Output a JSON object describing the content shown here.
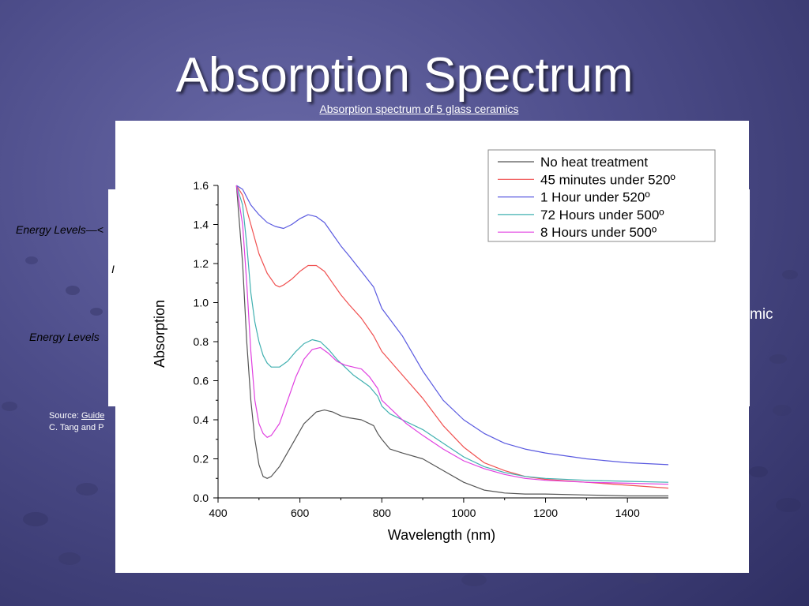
{
  "slide": {
    "title": "Absorption Spectrum",
    "subtitle_link": "Absorption spectrum of 5 glass ceramics",
    "side_label_1": "Energy Levels",
    "side_label_2": "Energy Levels",
    "side_fragment": "I",
    "source_prefix": "Source: ",
    "source_link": "Guide",
    "source_line2": "C. Tang and P",
    "right_fragment": "mic"
  },
  "colors": {
    "background": "#4d4d8a",
    "series": [
      "#555555",
      "#f05050",
      "#5a5ae0",
      "#40b0b0",
      "#e040e0"
    ]
  },
  "chart_data": {
    "type": "line",
    "xlabel": "Wavelength (nm)",
    "ylabel": "Absorption",
    "xlim": [
      400,
      1500
    ],
    "ylim": [
      0.0,
      1.6
    ],
    "xticks": [
      "400",
      "600",
      "800",
      "1000",
      "1200",
      "1400"
    ],
    "yticks": [
      "0.0",
      "0.2",
      "0.4",
      "0.6",
      "0.8",
      "1.0",
      "1.2",
      "1.4",
      "1.6"
    ],
    "legend_position": "top-right",
    "series": [
      {
        "name": "No heat treatment",
        "x": [
          445,
          460,
          470,
          480,
          490,
          500,
          510,
          520,
          530,
          550,
          580,
          610,
          640,
          660,
          680,
          700,
          720,
          750,
          770,
          780,
          790,
          800,
          820,
          850,
          900,
          950,
          1000,
          1050,
          1100,
          1150,
          1200,
          1300,
          1400,
          1500
        ],
        "y": [
          1.6,
          1.2,
          0.8,
          0.5,
          0.3,
          0.17,
          0.11,
          0.1,
          0.11,
          0.16,
          0.27,
          0.38,
          0.44,
          0.45,
          0.44,
          0.42,
          0.41,
          0.4,
          0.38,
          0.37,
          0.33,
          0.3,
          0.25,
          0.23,
          0.2,
          0.14,
          0.08,
          0.04,
          0.025,
          0.02,
          0.02,
          0.015,
          0.01,
          0.01
        ]
      },
      {
        "name": "45 minutes under 520º",
        "x": [
          445,
          460,
          480,
          500,
          520,
          540,
          550,
          560,
          580,
          600,
          620,
          640,
          660,
          680,
          700,
          720,
          750,
          780,
          800,
          850,
          900,
          950,
          1000,
          1050,
          1100,
          1150,
          1200,
          1300,
          1400,
          1500
        ],
        "y": [
          1.6,
          1.55,
          1.4,
          1.25,
          1.15,
          1.09,
          1.08,
          1.09,
          1.12,
          1.16,
          1.19,
          1.19,
          1.16,
          1.1,
          1.04,
          0.99,
          0.92,
          0.83,
          0.75,
          0.63,
          0.51,
          0.37,
          0.26,
          0.18,
          0.14,
          0.11,
          0.095,
          0.08,
          0.065,
          0.05
        ]
      },
      {
        "name": "1 Hour under 520º",
        "x": [
          445,
          460,
          480,
          500,
          520,
          540,
          560,
          580,
          600,
          620,
          640,
          660,
          680,
          700,
          720,
          750,
          780,
          800,
          850,
          900,
          950,
          1000,
          1050,
          1100,
          1150,
          1200,
          1300,
          1400,
          1500
        ],
        "y": [
          1.6,
          1.58,
          1.5,
          1.45,
          1.41,
          1.39,
          1.38,
          1.4,
          1.43,
          1.45,
          1.44,
          1.41,
          1.35,
          1.29,
          1.24,
          1.16,
          1.08,
          0.97,
          0.83,
          0.65,
          0.5,
          0.4,
          0.33,
          0.28,
          0.25,
          0.23,
          0.2,
          0.18,
          0.17
        ]
      },
      {
        "name": "72 Hours under 500º",
        "x": [
          445,
          460,
          470,
          480,
          490,
          500,
          510,
          520,
          530,
          550,
          570,
          590,
          610,
          630,
          650,
          670,
          690,
          710,
          730,
          750,
          770,
          790,
          800,
          820,
          850,
          900,
          950,
          1000,
          1050,
          1100,
          1150,
          1200,
          1300,
          1400,
          1500
        ],
        "y": [
          1.6,
          1.5,
          1.3,
          1.05,
          0.9,
          0.8,
          0.73,
          0.69,
          0.67,
          0.67,
          0.7,
          0.75,
          0.79,
          0.81,
          0.8,
          0.76,
          0.71,
          0.67,
          0.63,
          0.6,
          0.57,
          0.52,
          0.47,
          0.43,
          0.4,
          0.35,
          0.28,
          0.21,
          0.16,
          0.13,
          0.11,
          0.1,
          0.09,
          0.085,
          0.08
        ]
      },
      {
        "name": "8 Hours under 500º",
        "x": [
          445,
          460,
          470,
          480,
          490,
          500,
          510,
          520,
          530,
          550,
          570,
          590,
          610,
          630,
          650,
          670,
          690,
          710,
          730,
          750,
          770,
          790,
          800,
          830,
          860,
          900,
          950,
          1000,
          1050,
          1100,
          1150,
          1200,
          1300,
          1400,
          1500
        ],
        "y": [
          1.6,
          1.4,
          1.1,
          0.75,
          0.5,
          0.38,
          0.33,
          0.31,
          0.32,
          0.38,
          0.5,
          0.62,
          0.71,
          0.76,
          0.77,
          0.74,
          0.7,
          0.68,
          0.67,
          0.66,
          0.62,
          0.56,
          0.5,
          0.44,
          0.38,
          0.32,
          0.25,
          0.19,
          0.15,
          0.12,
          0.1,
          0.09,
          0.08,
          0.075,
          0.07
        ]
      }
    ]
  }
}
